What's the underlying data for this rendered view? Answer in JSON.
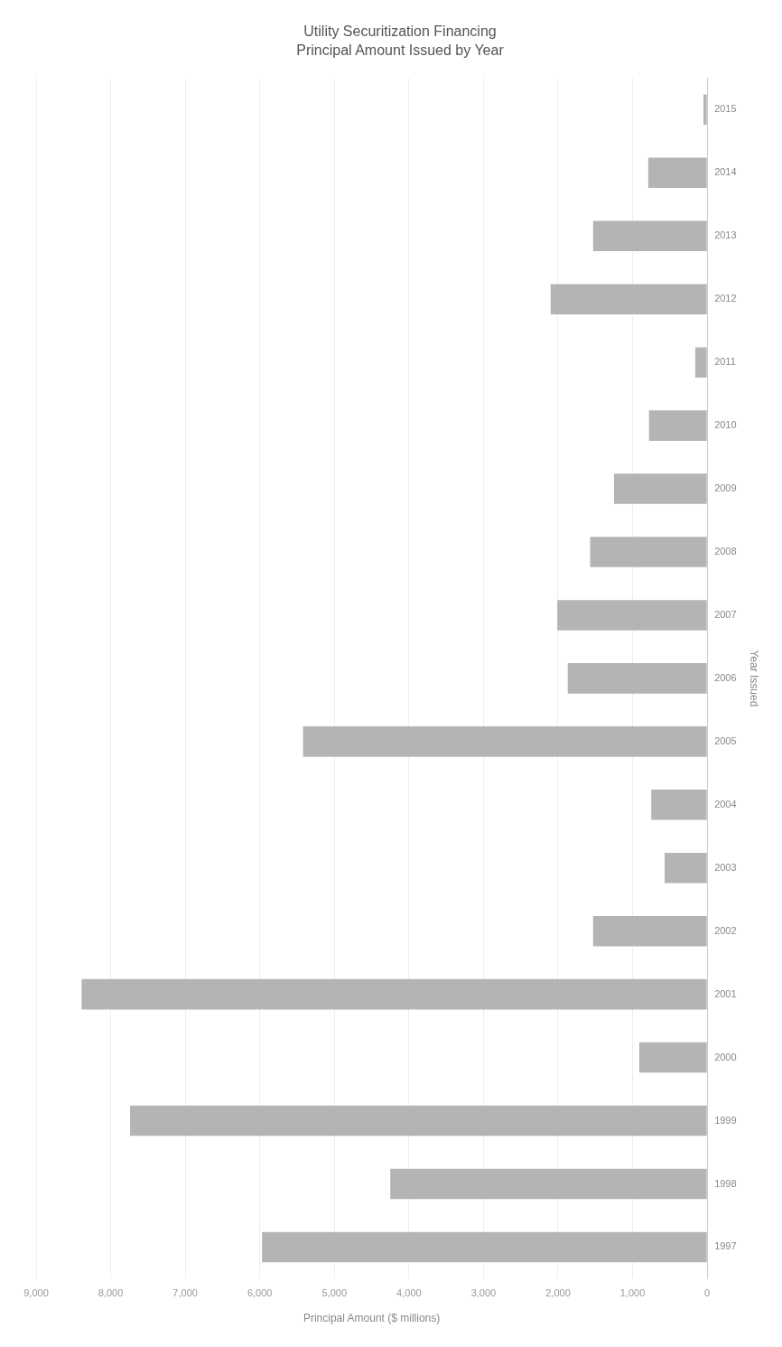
{
  "chart_data": {
    "type": "bar",
    "orientation": "horizontal",
    "title": "Utility Securitization Financing",
    "subtitle": "Principal Amount Issued by Year",
    "xlabel": "Principal Amount ($ millions)",
    "ylabel": "Year Issued",
    "categories": [
      "2015",
      "2014",
      "2013",
      "2012",
      "2011",
      "2010",
      "2009",
      "2008",
      "2007",
      "2006",
      "2005",
      "2004",
      "2003",
      "2002",
      "2001",
      "2000",
      "1999",
      "1998",
      "1997"
    ],
    "values": [
      50,
      790,
      1530,
      2100,
      160,
      780,
      1250,
      1570,
      2010,
      1870,
      5420,
      750,
      570,
      1530,
      8390,
      910,
      7740,
      4250,
      5970
    ],
    "color": "#b4b4b4",
    "xlim": [
      9000,
      0
    ],
    "xticks": [
      {
        "value": 9000,
        "label": "9,000"
      },
      {
        "value": 8000,
        "label": "8,000"
      },
      {
        "value": 7000,
        "label": "7,000"
      },
      {
        "value": 6000,
        "label": "6,000"
      },
      {
        "value": 5000,
        "label": "5,000"
      },
      {
        "value": 4000,
        "label": "4,000"
      },
      {
        "value": 3000,
        "label": "3,000"
      },
      {
        "value": 2000,
        "label": "2,000"
      },
      {
        "value": 1000,
        "label": "1,000"
      },
      {
        "value": 0,
        "label": "0"
      }
    ],
    "grid": "x",
    "legend": false
  }
}
